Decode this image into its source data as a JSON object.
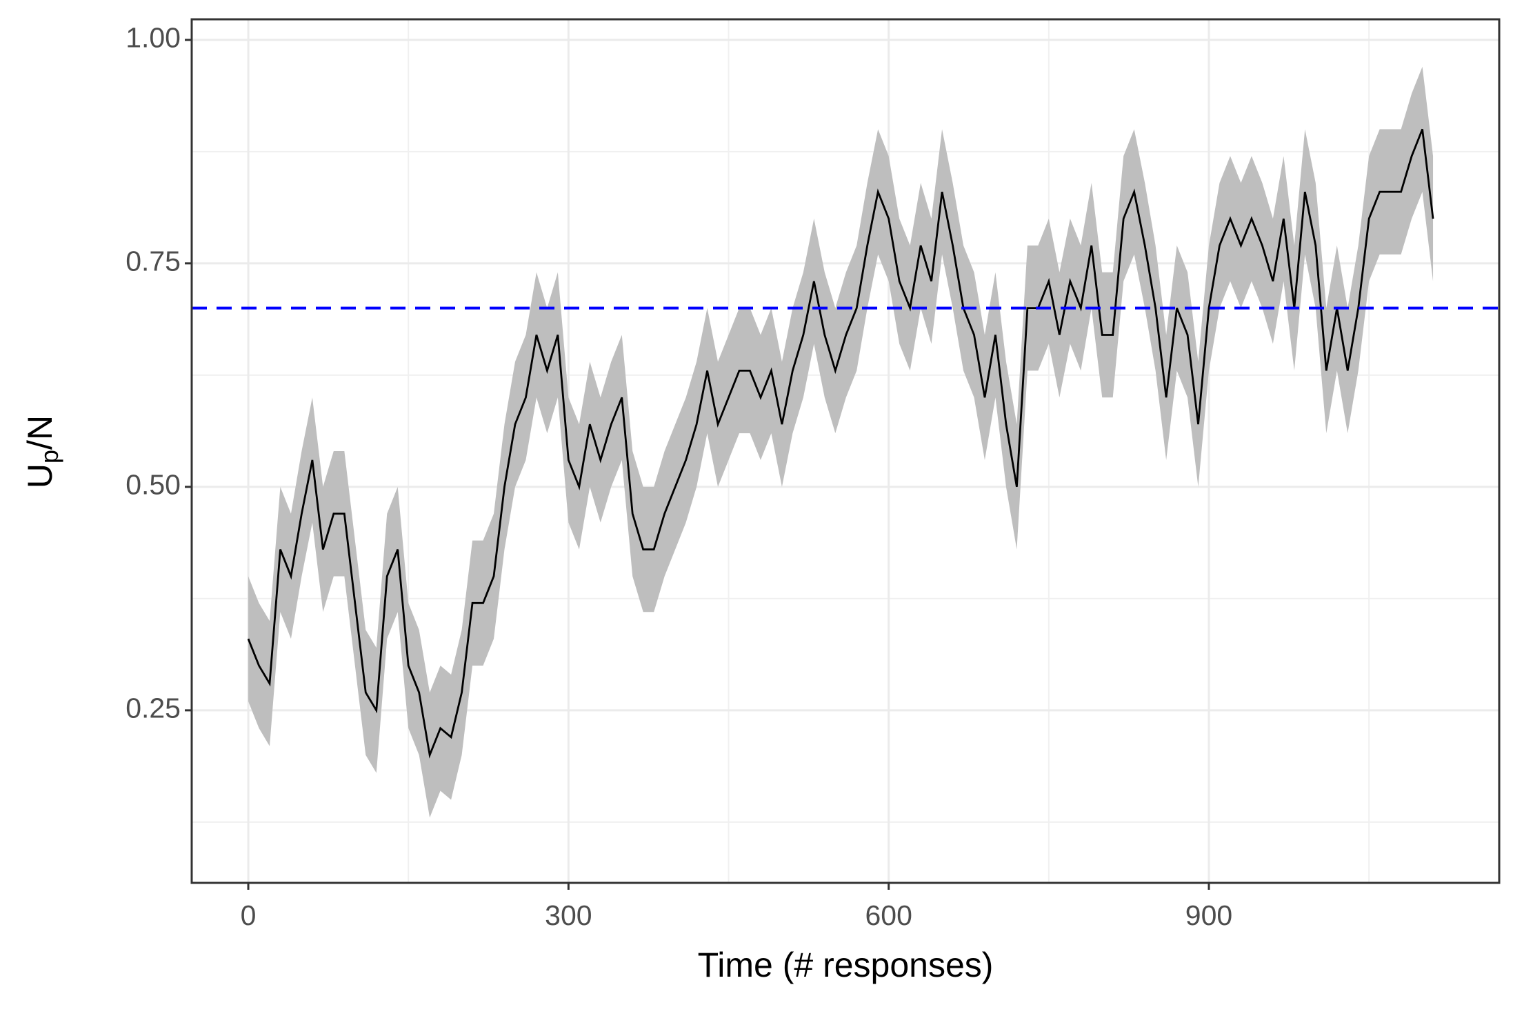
{
  "chart_data": {
    "type": "line",
    "xlabel": "Time (# responses)",
    "ylabel_parts": [
      "U",
      "p",
      "/N"
    ],
    "x": [
      0,
      10,
      20,
      30,
      40,
      50,
      60,
      70,
      80,
      90,
      100,
      110,
      120,
      130,
      140,
      150,
      160,
      170,
      180,
      190,
      200,
      210,
      220,
      230,
      240,
      250,
      260,
      270,
      280,
      290,
      300,
      310,
      320,
      330,
      340,
      350,
      360,
      370,
      380,
      390,
      400,
      410,
      420,
      430,
      440,
      450,
      460,
      470,
      480,
      490,
      500,
      510,
      520,
      530,
      540,
      550,
      560,
      570,
      580,
      590,
      600,
      610,
      620,
      630,
      640,
      650,
      660,
      670,
      680,
      690,
      700,
      710,
      720,
      730,
      740,
      750,
      760,
      770,
      780,
      790,
      800,
      810,
      820,
      830,
      840,
      850,
      860,
      870,
      880,
      890,
      900,
      910,
      920,
      930,
      940,
      950,
      960,
      970,
      980,
      990,
      1000,
      1010,
      1020,
      1030,
      1040,
      1050,
      1060,
      1070,
      1080,
      1090,
      1100,
      1110
    ],
    "values": [
      0.33,
      0.3,
      0.28,
      0.43,
      0.4,
      0.47,
      0.53,
      0.43,
      0.47,
      0.47,
      0.37,
      0.27,
      0.25,
      0.4,
      0.43,
      0.3,
      0.27,
      0.2,
      0.23,
      0.22,
      0.27,
      0.37,
      0.37,
      0.4,
      0.5,
      0.57,
      0.6,
      0.67,
      0.63,
      0.67,
      0.53,
      0.5,
      0.57,
      0.53,
      0.57,
      0.6,
      0.47,
      0.43,
      0.43,
      0.47,
      0.5,
      0.53,
      0.57,
      0.63,
      0.57,
      0.6,
      0.63,
      0.63,
      0.6,
      0.63,
      0.57,
      0.63,
      0.67,
      0.73,
      0.67,
      0.63,
      0.67,
      0.7,
      0.77,
      0.83,
      0.8,
      0.73,
      0.7,
      0.77,
      0.73,
      0.83,
      0.77,
      0.7,
      0.67,
      0.6,
      0.67,
      0.57,
      0.5,
      0.7,
      0.7,
      0.73,
      0.67,
      0.73,
      0.7,
      0.77,
      0.67,
      0.67,
      0.8,
      0.83,
      0.77,
      0.7,
      0.6,
      0.7,
      0.67,
      0.57,
      0.7,
      0.77,
      0.8,
      0.77,
      0.8,
      0.77,
      0.73,
      0.8,
      0.7,
      0.83,
      0.77,
      0.63,
      0.7,
      0.63,
      0.7,
      0.8,
      0.83,
      0.83,
      0.83,
      0.87,
      0.9,
      0.8
    ],
    "upper": [
      0.4,
      0.37,
      0.35,
      0.5,
      0.47,
      0.54,
      0.6,
      0.5,
      0.54,
      0.54,
      0.44,
      0.34,
      0.32,
      0.47,
      0.5,
      0.37,
      0.34,
      0.27,
      0.3,
      0.29,
      0.34,
      0.44,
      0.44,
      0.47,
      0.57,
      0.64,
      0.67,
      0.74,
      0.7,
      0.74,
      0.6,
      0.57,
      0.64,
      0.6,
      0.64,
      0.67,
      0.54,
      0.5,
      0.5,
      0.54,
      0.57,
      0.6,
      0.64,
      0.7,
      0.64,
      0.67,
      0.7,
      0.7,
      0.67,
      0.7,
      0.64,
      0.7,
      0.74,
      0.8,
      0.74,
      0.7,
      0.74,
      0.77,
      0.84,
      0.9,
      0.87,
      0.8,
      0.77,
      0.84,
      0.8,
      0.9,
      0.84,
      0.77,
      0.74,
      0.67,
      0.74,
      0.64,
      0.57,
      0.77,
      0.77,
      0.8,
      0.74,
      0.8,
      0.77,
      0.84,
      0.74,
      0.74,
      0.87,
      0.9,
      0.84,
      0.77,
      0.67,
      0.77,
      0.74,
      0.64,
      0.77,
      0.84,
      0.87,
      0.84,
      0.87,
      0.84,
      0.8,
      0.87,
      0.77,
      0.9,
      0.84,
      0.7,
      0.77,
      0.7,
      0.77,
      0.87,
      0.9,
      0.9,
      0.9,
      0.94,
      0.97,
      0.87
    ],
    "lower": [
      0.26,
      0.23,
      0.21,
      0.36,
      0.33,
      0.4,
      0.46,
      0.36,
      0.4,
      0.4,
      0.3,
      0.2,
      0.18,
      0.33,
      0.36,
      0.23,
      0.2,
      0.13,
      0.16,
      0.15,
      0.2,
      0.3,
      0.3,
      0.33,
      0.43,
      0.5,
      0.53,
      0.6,
      0.56,
      0.6,
      0.46,
      0.43,
      0.5,
      0.46,
      0.5,
      0.53,
      0.4,
      0.36,
      0.36,
      0.4,
      0.43,
      0.46,
      0.5,
      0.56,
      0.5,
      0.53,
      0.56,
      0.56,
      0.53,
      0.56,
      0.5,
      0.56,
      0.6,
      0.66,
      0.6,
      0.56,
      0.6,
      0.63,
      0.7,
      0.76,
      0.73,
      0.66,
      0.63,
      0.7,
      0.66,
      0.76,
      0.7,
      0.63,
      0.6,
      0.53,
      0.6,
      0.5,
      0.43,
      0.63,
      0.63,
      0.66,
      0.6,
      0.66,
      0.63,
      0.7,
      0.6,
      0.6,
      0.73,
      0.76,
      0.7,
      0.63,
      0.53,
      0.63,
      0.6,
      0.5,
      0.63,
      0.7,
      0.73,
      0.7,
      0.73,
      0.7,
      0.66,
      0.73,
      0.63,
      0.76,
      0.7,
      0.56,
      0.63,
      0.56,
      0.63,
      0.73,
      0.76,
      0.76,
      0.76,
      0.8,
      0.83,
      0.73
    ],
    "color": "#000000",
    "band_color": "#bebebe",
    "hline": {
      "value": 0.7,
      "color": "#0000ff",
      "dashed": true
    },
    "xlim": [
      -53,
      1172
    ],
    "ylim": [
      0.057,
      1.023
    ],
    "xticks": [
      0,
      300,
      600,
      900
    ],
    "xminorticks": [
      150,
      450,
      750,
      1050
    ],
    "yticks": [
      {
        "value": 0.25,
        "label": "0.25"
      },
      {
        "value": 0.5,
        "label": "0.50"
      },
      {
        "value": 0.75,
        "label": "0.75"
      },
      {
        "value": 1,
        "label": "1.00"
      }
    ],
    "yminorticks": [
      0.125,
      0.375,
      0.625,
      0.875
    ],
    "grid": true
  }
}
